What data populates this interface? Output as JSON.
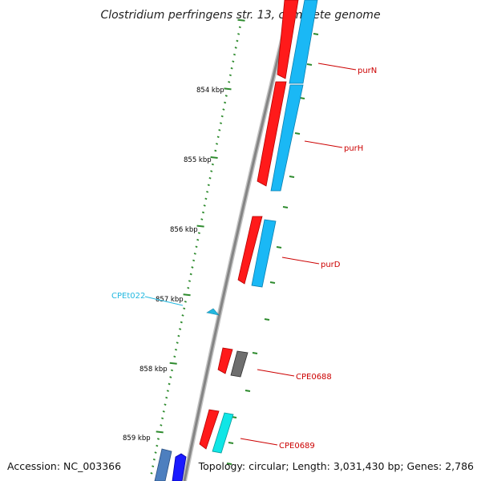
{
  "title": "Clostridium perfringens str. 13, complete genome",
  "footer": {
    "accession": "Accession: NC_003366",
    "summary": "Topology: circular; Length: 3,031,430 bp; Genes: 2,786"
  },
  "colors": {
    "backbone": "#8c8c8c",
    "ticks": "#2e8b2e",
    "gene_red": "#ff1a1a",
    "gene_skyblue": "#1ab8f5",
    "gene_gray": "#6e6e6e",
    "gene_cyan": "#10e6e6",
    "gene_blue": "#1a1aff",
    "gene_steel": "#4d7fbf",
    "label_red": "#cc0000",
    "label_cyan": "#22b8e0"
  },
  "kbp_labels": [
    "854 kbp",
    "855 kbp",
    "856 kbp",
    "857 kbp",
    "858 kbp",
    "859 kbp"
  ],
  "gene_labels": {
    "purN": "purN",
    "purH": "purH",
    "purD": "purD",
    "CPE0688": "CPE0688",
    "CPE0689": "CPE0689",
    "CPEt022": "CPEt022"
  }
}
